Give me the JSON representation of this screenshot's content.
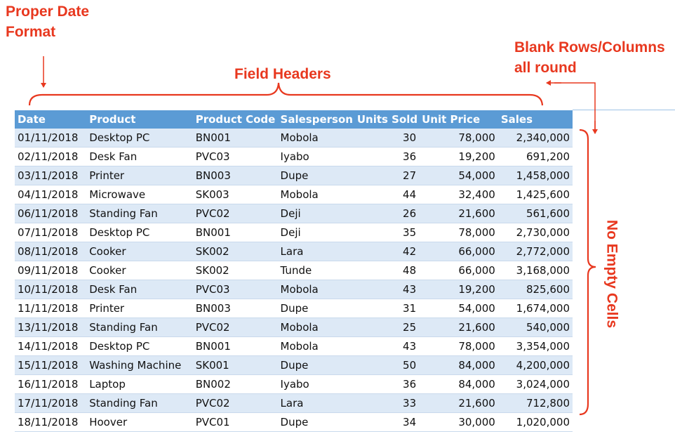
{
  "annotations": {
    "date_format": [
      "Proper Date",
      "Format"
    ],
    "field_headers": "Field Headers",
    "blank_rows": [
      "Blank Rows/Columns",
      "all round"
    ],
    "no_empty_cells": "No Empty Cells"
  },
  "colors": {
    "annotation": "#e8381f",
    "header_bg": "#5b9bd5",
    "band": "#dde9f6"
  },
  "table": {
    "headers": [
      "Date",
      "Product",
      "Product Code",
      "Salesperson",
      "Units Sold",
      "Unit Price",
      "Sales"
    ],
    "rows": [
      [
        "01/11/2018",
        "Desktop PC",
        "BN001",
        "Mobola",
        "30",
        "78,000",
        "2,340,000"
      ],
      [
        "02/11/2018",
        "Desk Fan",
        "PVC03",
        "Iyabo",
        "36",
        "19,200",
        "691,200"
      ],
      [
        "03/11/2018",
        "Printer",
        "BN003",
        "Dupe",
        "27",
        "54,000",
        "1,458,000"
      ],
      [
        "04/11/2018",
        "Microwave",
        "SK003",
        "Mobola",
        "44",
        "32,400",
        "1,425,600"
      ],
      [
        "06/11/2018",
        "Standing Fan",
        "PVC02",
        "Deji",
        "26",
        "21,600",
        "561,600"
      ],
      [
        "07/11/2018",
        "Desktop PC",
        "BN001",
        "Deji",
        "35",
        "78,000",
        "2,730,000"
      ],
      [
        "08/11/2018",
        "Cooker",
        "SK002",
        "Lara",
        "42",
        "66,000",
        "2,772,000"
      ],
      [
        "09/11/2018",
        "Cooker",
        "SK002",
        "Tunde",
        "48",
        "66,000",
        "3,168,000"
      ],
      [
        "10/11/2018",
        "Desk Fan",
        "PVC03",
        "Mobola",
        "43",
        "19,200",
        "825,600"
      ],
      [
        "11/11/2018",
        "Printer",
        "BN003",
        "Dupe",
        "31",
        "54,000",
        "1,674,000"
      ],
      [
        "13/11/2018",
        "Standing Fan",
        "PVC02",
        "Mobola",
        "25",
        "21,600",
        "540,000"
      ],
      [
        "14/11/2018",
        "Desktop PC",
        "BN001",
        "Mobola",
        "43",
        "78,000",
        "3,354,000"
      ],
      [
        "15/11/2018",
        "Washing Machine",
        "SK001",
        "Dupe",
        "50",
        "84,000",
        "4,200,000"
      ],
      [
        "16/11/2018",
        "Laptop",
        "BN002",
        "Iyabo",
        "36",
        "84,000",
        "3,024,000"
      ],
      [
        "17/11/2018",
        "Standing Fan",
        "PVC02",
        "Lara",
        "33",
        "21,600",
        "712,800"
      ],
      [
        "18/11/2018",
        "Hoover",
        "PVC01",
        "Dupe",
        "34",
        "30,000",
        "1,020,000"
      ]
    ]
  }
}
